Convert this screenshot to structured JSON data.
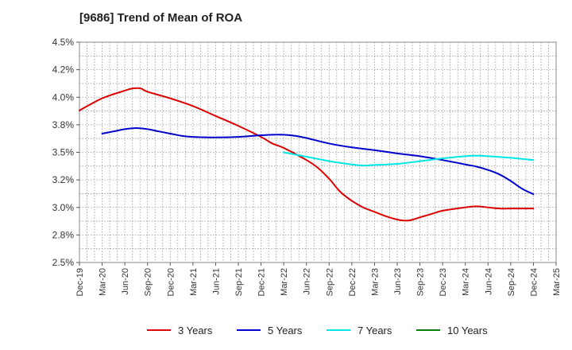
{
  "chart_data": {
    "type": "line",
    "title": "[9686]  Trend of Mean of ROA",
    "xlabel": "",
    "ylabel": "",
    "ylim": [
      2.5,
      4.5
    ],
    "y_ticks": [
      2.5,
      2.75,
      3.0,
      3.25,
      3.5,
      3.75,
      4.0,
      4.25,
      4.5
    ],
    "y_tick_labels": [
      "2.5%",
      "2.8%",
      "3.0%",
      "3.2%",
      "3.5%",
      "3.8%",
      "4.0%",
      "4.2%",
      "4.5%"
    ],
    "x_tick_labels": [
      "Dec-19",
      "Mar-20",
      "Jun-20",
      "Sep-20",
      "Dec-20",
      "Mar-21",
      "Jun-21",
      "Sep-21",
      "Dec-21",
      "Mar-22",
      "Jun-22",
      "Sep-22",
      "Dec-22",
      "Mar-23",
      "Jun-23",
      "Sep-23",
      "Dec-23",
      "Mar-24",
      "Jun-24",
      "Sep-24",
      "Dec-24",
      "Mar-25"
    ],
    "grid": true,
    "legend_position": "bottom",
    "series": [
      {
        "name": "3 Years",
        "color": "#dd0000",
        "points": [
          [
            0,
            3.88
          ],
          [
            1,
            3.99
          ],
          [
            2,
            4.06
          ],
          [
            2.35,
            4.08
          ],
          [
            2.7,
            4.08
          ],
          [
            3,
            4.05
          ],
          [
            4,
            3.99
          ],
          [
            5,
            3.92
          ],
          [
            6,
            3.83
          ],
          [
            7,
            3.74
          ],
          [
            8,
            3.64
          ],
          [
            8.5,
            3.58
          ],
          [
            9,
            3.54
          ],
          [
            10,
            3.43
          ],
          [
            10.5,
            3.36
          ],
          [
            11,
            3.26
          ],
          [
            11.5,
            3.14
          ],
          [
            12,
            3.06
          ],
          [
            12.5,
            3.0
          ],
          [
            13,
            2.96
          ],
          [
            13.5,
            2.92
          ],
          [
            14,
            2.89
          ],
          [
            14.4,
            2.88
          ],
          [
            14.7,
            2.89
          ],
          [
            15,
            2.91
          ],
          [
            15.5,
            2.94
          ],
          [
            16,
            2.97
          ],
          [
            17,
            3.0
          ],
          [
            17.5,
            3.01
          ],
          [
            18,
            3.0
          ],
          [
            18.5,
            2.99
          ],
          [
            19,
            2.99
          ],
          [
            20,
            2.99
          ]
        ]
      },
      {
        "name": "5 Years",
        "color": "#0000cc",
        "points": [
          [
            1,
            3.67
          ],
          [
            1.5,
            3.69
          ],
          [
            2,
            3.71
          ],
          [
            2.5,
            3.72
          ],
          [
            3,
            3.71
          ],
          [
            3.5,
            3.69
          ],
          [
            4,
            3.67
          ],
          [
            4.5,
            3.65
          ],
          [
            5,
            3.64
          ],
          [
            6,
            3.635
          ],
          [
            7,
            3.64
          ],
          [
            8,
            3.655
          ],
          [
            8.5,
            3.66
          ],
          [
            9,
            3.66
          ],
          [
            9.5,
            3.65
          ],
          [
            10,
            3.63
          ],
          [
            11,
            3.58
          ],
          [
            12,
            3.545
          ],
          [
            13,
            3.52
          ],
          [
            14,
            3.49
          ],
          [
            15,
            3.465
          ],
          [
            16,
            3.43
          ],
          [
            17,
            3.39
          ],
          [
            17.5,
            3.37
          ],
          [
            18,
            3.34
          ],
          [
            18.5,
            3.3
          ],
          [
            19,
            3.24
          ],
          [
            19.5,
            3.17
          ],
          [
            20,
            3.12
          ]
        ]
      },
      {
        "name": "7 Years",
        "color": "#00e5e5",
        "points": [
          [
            9,
            3.5
          ],
          [
            10,
            3.46
          ],
          [
            11,
            3.42
          ],
          [
            12,
            3.39
          ],
          [
            12.5,
            3.38
          ],
          [
            13,
            3.385
          ],
          [
            14,
            3.395
          ],
          [
            15,
            3.42
          ],
          [
            16,
            3.445
          ],
          [
            17,
            3.465
          ],
          [
            17.5,
            3.47
          ],
          [
            18,
            3.465
          ],
          [
            19,
            3.45
          ],
          [
            20,
            3.43
          ]
        ]
      },
      {
        "name": "10 Years",
        "color": "#008000",
        "points": []
      }
    ]
  }
}
